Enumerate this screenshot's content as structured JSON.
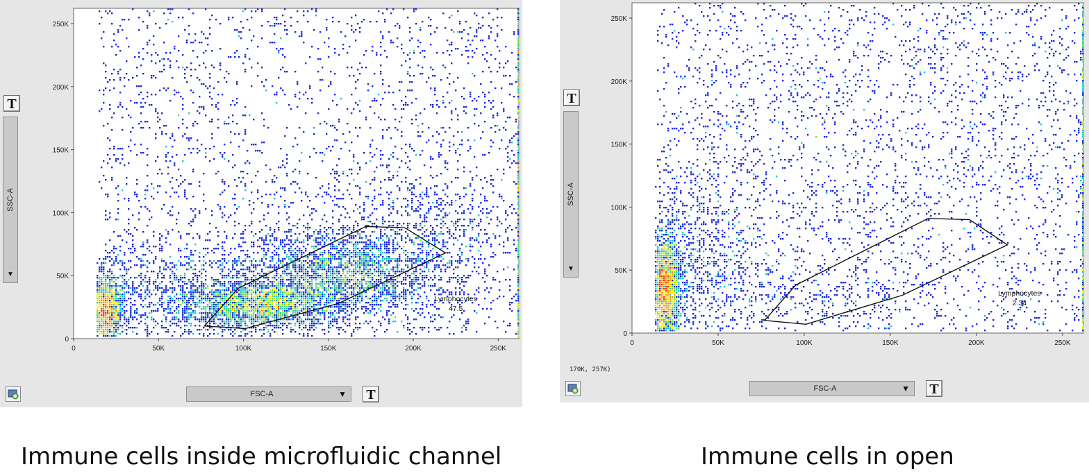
{
  "captions": [
    "Immune cells inside microfluidic channel",
    "Immune cells in open"
  ],
  "colors": {
    "density_low": "#1a2ad8",
    "density_mid": "#22c4c8",
    "density_high": "#f0ea28",
    "density_peak": "#e83018",
    "gate": "#111111"
  },
  "icons": {
    "gear": "layout-editor-icon",
    "transform": "T"
  },
  "chart_data": [
    {
      "type": "scatter",
      "title": "",
      "xlabel": "FSC-A",
      "ylabel": "SSC-A",
      "xlim": [
        0,
        262144
      ],
      "ylim": [
        0,
        262144
      ],
      "x_ticks": [
        0,
        50000,
        100000,
        150000,
        200000,
        250000
      ],
      "x_tick_labels": [
        "0",
        "50K",
        "100K",
        "150K",
        "200K",
        "250K"
      ],
      "y_ticks": [
        0,
        50000,
        100000,
        150000,
        200000,
        250000
      ],
      "y_tick_labels": [
        "0",
        "50K",
        "100K",
        "150K",
        "200K",
        "250K"
      ],
      "gate": {
        "name": "Lymphocytes",
        "value": "47.5",
        "label_at": [
          225000,
          22000
        ],
        "vertices": [
          [
            77000,
            10000
          ],
          [
            101000,
            8000
          ],
          [
            156000,
            28000
          ],
          [
            219000,
            68000
          ],
          [
            195000,
            88000
          ],
          [
            172000,
            89000
          ],
          [
            97000,
            40000
          ]
        ]
      },
      "populations": [
        {
          "cx": 18000,
          "cy": 22000,
          "sx": 5000,
          "sy": 14000,
          "n": 1700
        },
        {
          "cx": 108000,
          "cy": 26000,
          "sx": 22000,
          "sy": 10000,
          "n": 2000
        },
        {
          "cx": 155000,
          "cy": 50000,
          "sx": 30000,
          "sy": 18000,
          "n": 2400
        },
        {
          "cx": 55000,
          "cy": 35000,
          "sx": 35000,
          "sy": 22000,
          "n": 1000
        },
        {
          "cx": 200000,
          "cy": 80000,
          "sx": 30000,
          "sy": 28000,
          "n": 700
        }
      ],
      "uniform_noise": 2500,
      "edge_events": {
        "x": 262000,
        "n": 350
      },
      "controls": {
        "y_param": "SSC-A",
        "x_param": "FSC-A",
        "transform_label": "T",
        "dropdown_arrow": "▼"
      },
      "seed": 11
    },
    {
      "type": "scatter",
      "title": "",
      "xlabel": "FSC-A",
      "ylabel": "SSC-A",
      "xlim": [
        0,
        262144
      ],
      "ylim": [
        0,
        262144
      ],
      "x_ticks": [
        0,
        50000,
        100000,
        150000,
        200000,
        250000
      ],
      "x_tick_labels": [
        "0",
        "50K",
        "100K",
        "150K",
        "200K",
        "250K"
      ],
      "y_ticks": [
        0,
        50000,
        100000,
        150000,
        200000,
        250000
      ],
      "y_tick_labels": [
        "0",
        "50K",
        "100K",
        "150K",
        "200K",
        "250K"
      ],
      "gate": {
        "name": "Lymphocytes",
        "value": "2.34",
        "label_at": [
          225000,
          22000
        ],
        "vertices": [
          [
            77000,
            10000
          ],
          [
            101000,
            7000
          ],
          [
            157000,
            30000
          ],
          [
            218000,
            70000
          ],
          [
            196000,
            90000
          ],
          [
            172000,
            91000
          ],
          [
            95000,
            38000
          ]
        ]
      },
      "populations": [
        {
          "cx": 18000,
          "cy": 35000,
          "sx": 5000,
          "sy": 20000,
          "n": 2400
        },
        {
          "cx": 40000,
          "cy": 55000,
          "sx": 25000,
          "sy": 40000,
          "n": 800
        },
        {
          "cx": 120000,
          "cy": 30000,
          "sx": 20000,
          "sy": 12000,
          "n": 120
        }
      ],
      "uniform_noise": 3000,
      "edge_events": {
        "x": 262000,
        "n": 300
      },
      "coordinate_readout": "170K, 257K)",
      "controls": {
        "y_param": "SSC-A",
        "x_param": "FSC-A",
        "transform_label": "T",
        "dropdown_arrow": "▼"
      },
      "seed": 23
    }
  ]
}
